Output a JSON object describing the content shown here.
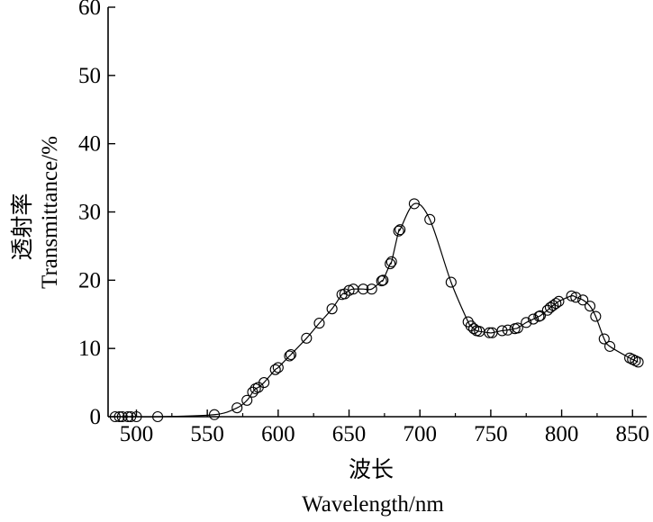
{
  "chart_data": {
    "type": "line",
    "xlabel_cn": "波长",
    "xlabel": "Wavelength/nm",
    "ylabel_cn": "透射率",
    "ylabel": "Transmittance/%",
    "xlim": [
      480,
      860
    ],
    "ylim": [
      0,
      60
    ],
    "xticks": [
      "500",
      "550",
      "600",
      "650",
      "700",
      "750",
      "800",
      "850"
    ],
    "yticks": [
      "0",
      "10",
      "20",
      "30",
      "40",
      "50",
      "60"
    ],
    "grid": false,
    "series": [
      {
        "marker": "open-circle",
        "line": "smooth",
        "points": [
          [
            485,
            0.0
          ],
          [
            488,
            0.0
          ],
          [
            490,
            0.0
          ],
          [
            494,
            0.0
          ],
          [
            496,
            0.0
          ],
          [
            500,
            0.0
          ],
          [
            515,
            0.0
          ],
          [
            555,
            0.3
          ],
          [
            571,
            1.3
          ],
          [
            578,
            2.4
          ],
          [
            582,
            3.6
          ],
          [
            584,
            4.1
          ],
          [
            586,
            4.3
          ],
          [
            590,
            5.0
          ],
          [
            598,
            6.9
          ],
          [
            600,
            7.2
          ],
          [
            608,
            8.9
          ],
          [
            609,
            9.1
          ],
          [
            620,
            11.5
          ],
          [
            629,
            13.7
          ],
          [
            638,
            15.8
          ],
          [
            645,
            17.9
          ],
          [
            647,
            18.0
          ],
          [
            650,
            18.5
          ],
          [
            653,
            18.7
          ],
          [
            660,
            18.7
          ],
          [
            666,
            18.7
          ],
          [
            673,
            19.9
          ],
          [
            674,
            20.0
          ],
          [
            679,
            22.4
          ],
          [
            680,
            22.7
          ],
          [
            685,
            27.2
          ],
          [
            686,
            27.4
          ],
          [
            696,
            31.2
          ],
          [
            707,
            28.9
          ],
          [
            722,
            19.7
          ],
          [
            734,
            13.9
          ],
          [
            736,
            13.3
          ],
          [
            738,
            12.9
          ],
          [
            740,
            12.6
          ],
          [
            742,
            12.5
          ],
          [
            749,
            12.3
          ],
          [
            751,
            12.3
          ],
          [
            758,
            12.6
          ],
          [
            762,
            12.7
          ],
          [
            767,
            12.9
          ],
          [
            769,
            13.0
          ],
          [
            775,
            13.8
          ],
          [
            780,
            14.3
          ],
          [
            784,
            14.7
          ],
          [
            785,
            14.8
          ],
          [
            790,
            15.6
          ],
          [
            792,
            16.0
          ],
          [
            794,
            16.3
          ],
          [
            796,
            16.6
          ],
          [
            798,
            16.9
          ],
          [
            807,
            17.7
          ],
          [
            810,
            17.5
          ],
          [
            815,
            17.1
          ],
          [
            820,
            16.2
          ],
          [
            824,
            14.7
          ],
          [
            830,
            11.4
          ],
          [
            834,
            10.3
          ],
          [
            848,
            8.6
          ],
          [
            850,
            8.4
          ],
          [
            852,
            8.2
          ],
          [
            854,
            8.0
          ]
        ]
      }
    ]
  }
}
